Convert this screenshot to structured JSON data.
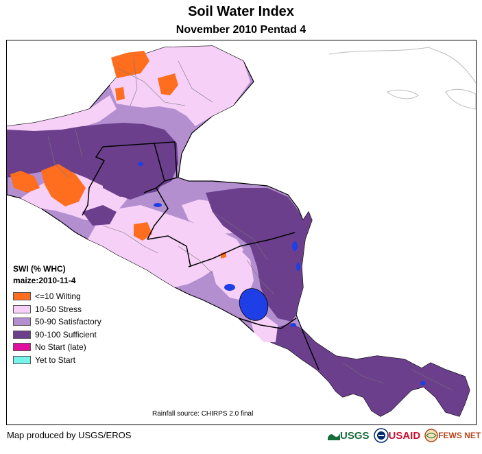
{
  "title": "Soil Water Index",
  "subtitle": "November 2010 Pentad 4",
  "legend": {
    "heading": "SWI (% WHC)",
    "crop": "maize:2010-11-4",
    "items": [
      {
        "label": "<=10 Wilting",
        "color": "#ff6d1f"
      },
      {
        "label": "10-50 Stress",
        "color": "#f6d0f7"
      },
      {
        "label": "50-90 Satisfactory",
        "color": "#b38fd0"
      },
      {
        "label": "90-100 Sufficient",
        "color": "#6b3f8c"
      },
      {
        "label": "No Start (late)",
        "color": "#e0109d"
      },
      {
        "label": "Yet to Start",
        "color": "#78f3e9"
      }
    ]
  },
  "water_color": "#1e3ee6",
  "rainfall_source": "Rainfall source: CHIRPS 2.0 final",
  "credit": "Map produced by USGS/EROS",
  "logos": {
    "usgs": "USGS",
    "usaid": "USAID",
    "fewsnet": "FEWS NET"
  }
}
